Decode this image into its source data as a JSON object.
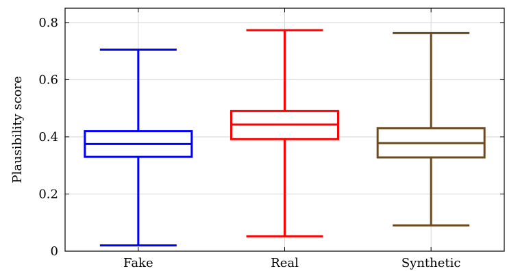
{
  "chart_data": {
    "type": "box",
    "title": "",
    "xlabel": "",
    "ylabel": "Plausibility score",
    "ylim": [
      0,
      0.85
    ],
    "yticks": [
      "0",
      "0.2",
      "0.4",
      "0.6",
      "0.8"
    ],
    "ytick_values": [
      0,
      0.2,
      0.4,
      0.6,
      0.8
    ],
    "grid": true,
    "categories": [
      "Fake",
      "Real",
      "Synthetic"
    ],
    "boxes": [
      {
        "category": "Fake",
        "color": "#0000ff",
        "min": 0.02,
        "q1": 0.33,
        "median": 0.375,
        "q3": 0.42,
        "max": 0.705
      },
      {
        "category": "Real",
        "color": "#ff0000",
        "min": 0.052,
        "q1": 0.392,
        "median": 0.443,
        "q3": 0.49,
        "max": 0.773
      },
      {
        "category": "Synthetic",
        "color": "#6b4a22",
        "min": 0.09,
        "q1": 0.328,
        "median": 0.378,
        "q3": 0.43,
        "max": 0.763
      }
    ]
  }
}
